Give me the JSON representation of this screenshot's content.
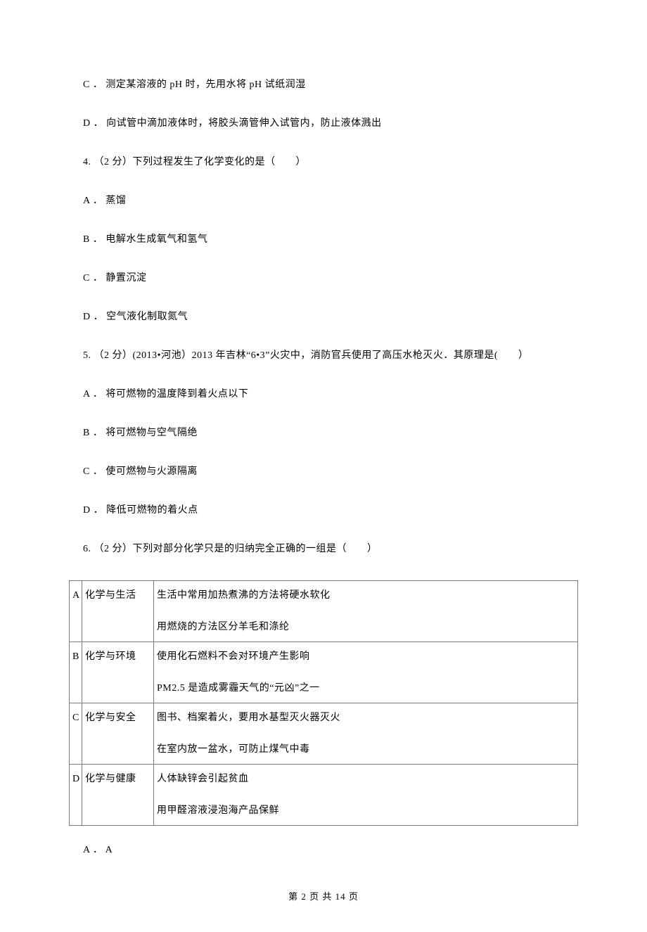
{
  "options_prefix": [
    {
      "label": "C ．",
      "text": "测定某溶液的 pH 时，先用水将 pH 试纸润湿"
    },
    {
      "label": "D ．",
      "text": "向试管中滴加液体时，将胶头滴管伸入试管内，防止液体溅出"
    }
  ],
  "q4": {
    "stem": "4. （2 分）下列过程发生了化学变化的是（　　）",
    "options": [
      {
        "label": "A ．",
        "text": "蒸馏"
      },
      {
        "label": "B ．",
        "text": "电解水生成氧气和氢气"
      },
      {
        "label": "C ．",
        "text": "静置沉淀"
      },
      {
        "label": "D ．",
        "text": "空气液化制取氮气"
      }
    ]
  },
  "q5": {
    "stem": "5. （2 分）(2013•河池）2013 年吉林“6•3”火灾中，消防官兵使用了高压水枪灭火．其原理是(　　）",
    "options": [
      {
        "label": "A ．",
        "text": "将可燃物的温度降到着火点以下"
      },
      {
        "label": "B ．",
        "text": "将可燃物与空气隔绝"
      },
      {
        "label": "C ．",
        "text": "使可燃物与火源隔离"
      },
      {
        "label": "D ．",
        "text": "降低可燃物的着火点"
      }
    ]
  },
  "q6": {
    "stem": "6. （2 分）下列对部分化学只是的归纳完全正确的一组是（　　）",
    "table": {
      "rows": [
        {
          "key": "A",
          "cat": "化学与生活",
          "line1": "生活中常用加热煮沸的方法将硬水软化",
          "line2": "用燃烧的方法区分羊毛和涤纶"
        },
        {
          "key": "B",
          "cat": "化学与环境",
          "line1": "使用化石燃料不会对环境产生影响",
          "line2": "PM2.5 是造成雾霾天气的“元凶”之一"
        },
        {
          "key": "C",
          "cat": "化学与安全",
          "line1": "图书、档案着火，要用水基型灭火器灭火",
          "line2": "在室内放一盆水，可防止煤气中毒"
        },
        {
          "key": "D",
          "cat": "化学与健康",
          "line1": "人体缺锌会引起贫血",
          "line2": "用甲醛溶液浸泡海产品保鲜"
        }
      ]
    },
    "after_option": {
      "label": "A ．",
      "text": "A"
    }
  },
  "footer": "第 2 页 共 14 页"
}
